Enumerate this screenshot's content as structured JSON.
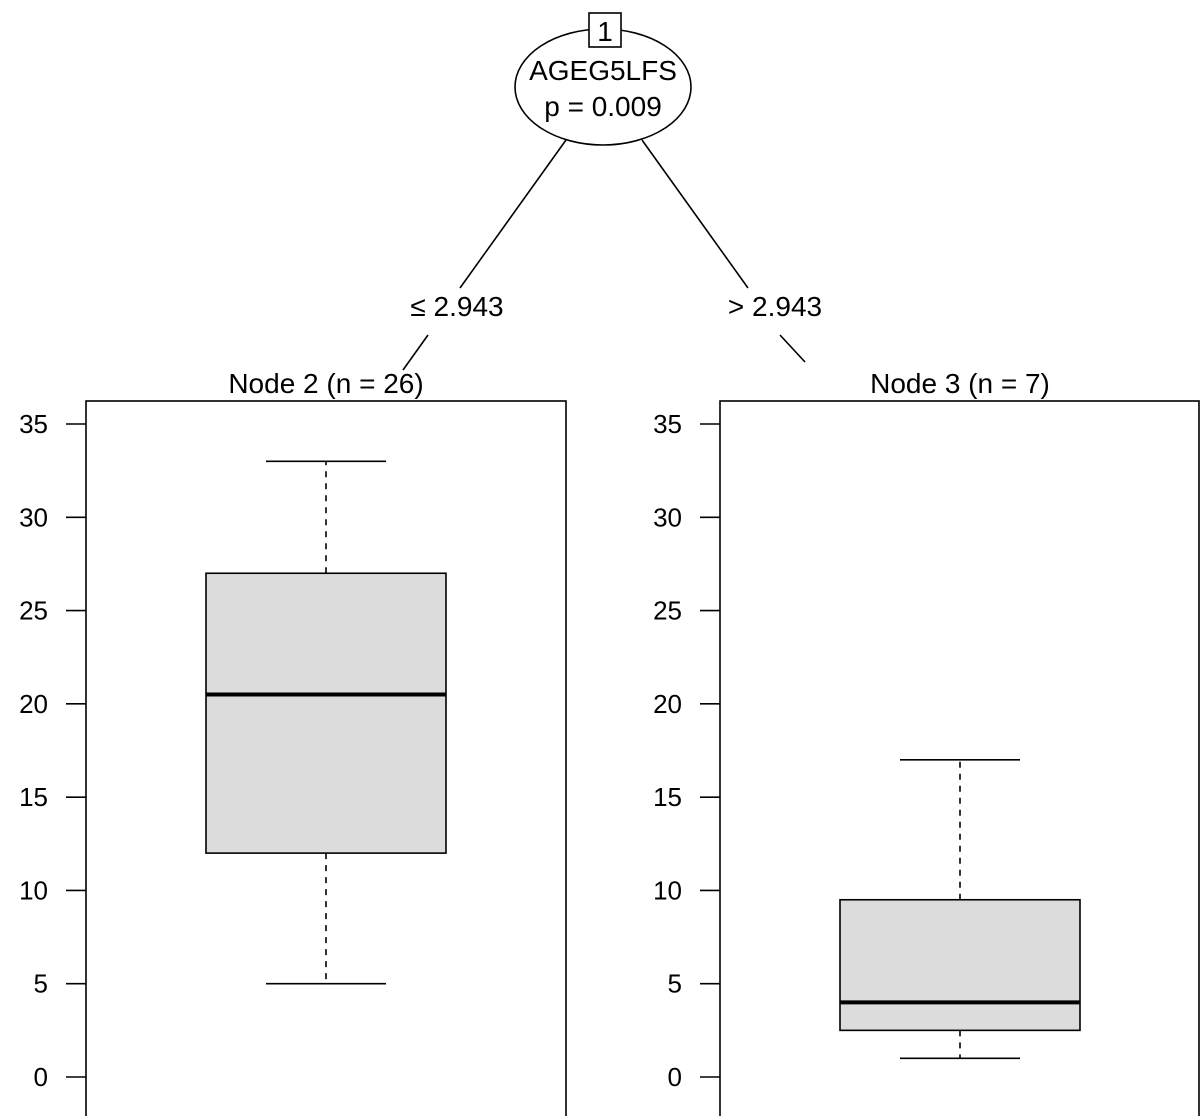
{
  "root": {
    "id": "1",
    "variable": "AGEG5LFS",
    "pvalue": "p = 0.009"
  },
  "edges": {
    "left": "≤ 2.943",
    "right": "> 2.943"
  },
  "chart_data": [
    {
      "type": "box",
      "title": "Node 2 (n = 26)",
      "ylim": [
        0,
        35
      ],
      "yticks": [
        "0",
        "5",
        "10",
        "15",
        "20",
        "25",
        "30",
        "35"
      ],
      "whisker_low": 5,
      "q1": 12,
      "median": 20.5,
      "q3": 27,
      "whisker_high": 33
    },
    {
      "type": "box",
      "title": "Node 3 (n = 7)",
      "ylim": [
        0,
        35
      ],
      "yticks": [
        "0",
        "5",
        "10",
        "15",
        "20",
        "25",
        "30",
        "35"
      ],
      "whisker_low": 1,
      "q1": 2.5,
      "median": 4,
      "q3": 9.5,
      "whisker_high": 17
    }
  ],
  "colors": {
    "box_fill": "#dcdcdc",
    "stroke": "#000000"
  }
}
